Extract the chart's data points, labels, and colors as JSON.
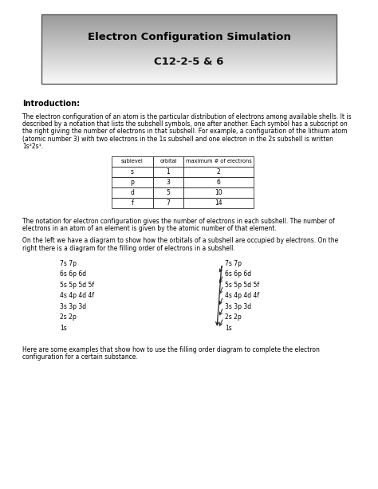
{
  "title_line1": "Electron Configuration Simulation",
  "title_line2": "C12-2-5 & 6",
  "intro_heading": "Introduction:",
  "para1_lines": [
    "The electron configuration of an atom is the particular distribution of electrons among available shells. It is",
    "described by a notation that lists the subshell symbols, one after another. Each symbol has a subscript on",
    "the right giving the number of electrons in that subshell. For example, a configuration of the lithium atom",
    "(atomic number 3) with two electrons in the 1s subshell and one electron in the 2s subshell is written",
    "1s²2s¹."
  ],
  "table_headers": [
    "sublevel",
    "orbital",
    "maximum # of electrons"
  ],
  "table_rows": [
    [
      "s",
      "1",
      "2"
    ],
    [
      "p",
      "3",
      "6"
    ],
    [
      "d",
      "5",
      "10"
    ],
    [
      "f",
      "7",
      "14"
    ]
  ],
  "para2_lines": [
    "The notation for electron configuration gives the number of electrons in each subshell. The number of",
    "electrons in an atom of an element is given by the atomic number of that element."
  ],
  "para3_lines": [
    "On the left we have a diagram to show how the orbitals of a subshell are occupied by electrons. On the",
    "right there is a diagram for the filling order of electrons in a subshell."
  ],
  "left_diagram": [
    "7s 7p",
    "6s 6p 6d",
    "5s 5p 5d 5f",
    "4s 4p 4d 4f",
    "3s 3p 3d",
    "2s 2p",
    "1s"
  ],
  "right_diagram": [
    "7s 7p",
    "6s 6p 6d",
    "5s 5p 5d 5f",
    "4s 4p 4d 4f",
    "3s 3p 3d",
    "2s 2p",
    "1s"
  ],
  "para4_lines": [
    "Here are some examples that show how to use the filling order diagram to complete the electron",
    "configuration for a certain substance."
  ],
  "bg_color": "#ffffff"
}
